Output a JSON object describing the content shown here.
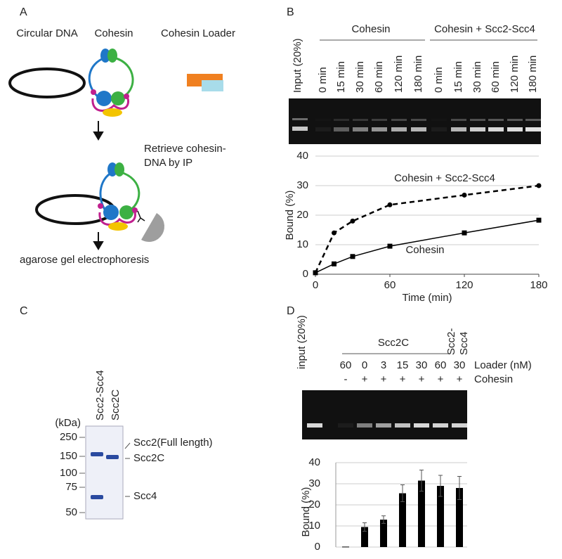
{
  "panel_labels": [
    "A",
    "B",
    "C",
    "D"
  ],
  "schematic": {
    "circular_dna": "Circular DNA",
    "cohesin": "Cohesin",
    "cohesin_loader": "Cohesin Loader",
    "retrieve": [
      "Retrieve cohesin-",
      "DNA by IP"
    ],
    "electrophoresis": "agarose gel electrophoresis"
  },
  "gel_b": {
    "input": "Input (20%)",
    "groups": [
      "Cohesin",
      "Cohesin + Scc2-Scc4"
    ],
    "lanes": [
      "0 min",
      "15 min",
      "30 min",
      "60 min",
      "120 min",
      "180 min",
      "0 min",
      "15 min",
      "30 min",
      "60 min",
      "120 min",
      "180 min"
    ]
  },
  "gel_c": {
    "lanes": [
      "Scc2-Scc4",
      "Scc2C"
    ],
    "unit": "(kDa)",
    "markers": [
      "250",
      "150",
      "100",
      "75",
      "50"
    ],
    "bands": [
      "Scc2(Full length)",
      "Scc2C",
      "Scc4"
    ]
  },
  "gel_d": {
    "input": "input (20%)",
    "group": "Scc2C",
    "group2": [
      "Scc2-",
      "Scc4"
    ],
    "loader_label": "Loader (nM)",
    "cohesin_label": "Cohesin",
    "cohesin": [
      "-",
      "+",
      "+",
      "+",
      "+",
      "+",
      "+"
    ]
  },
  "chart_data": [
    {
      "type": "line",
      "x": [
        0,
        15,
        30,
        60,
        120,
        180
      ],
      "series": [
        {
          "name": "Cohesin + Scc2-Scc4",
          "color": "#000000",
          "dashed": true,
          "marker": "circle",
          "values": [
            0.5,
            14,
            18,
            23.5,
            26.8,
            30
          ]
        },
        {
          "name": "Cohesin",
          "color": "#000000",
          "dashed": false,
          "marker": "square",
          "values": [
            0.5,
            3.5,
            6,
            9.5,
            14,
            18.3
          ]
        }
      ],
      "xlabel": "Time (min)",
      "ylabel": "Bound (%)",
      "xlim": [
        0,
        180
      ],
      "xticks": [
        0,
        60,
        120,
        180
      ],
      "ylim": [
        0,
        40
      ],
      "yticks": [
        0,
        10,
        20,
        30,
        40
      ],
      "grid": true
    },
    {
      "type": "bar",
      "categories": [
        "60",
        "0",
        "3",
        "15",
        "30",
        "60",
        "30"
      ],
      "values": [
        0.2,
        9.5,
        13,
        25.5,
        31.5,
        29,
        28
      ],
      "errors": [
        0,
        2,
        1.8,
        4,
        5,
        5,
        5.5
      ],
      "color": "#000000",
      "ylabel": "Bound (%)",
      "ylim": [
        0,
        40
      ],
      "yticks": [
        0,
        10,
        20,
        30,
        40
      ],
      "grid": true
    }
  ]
}
